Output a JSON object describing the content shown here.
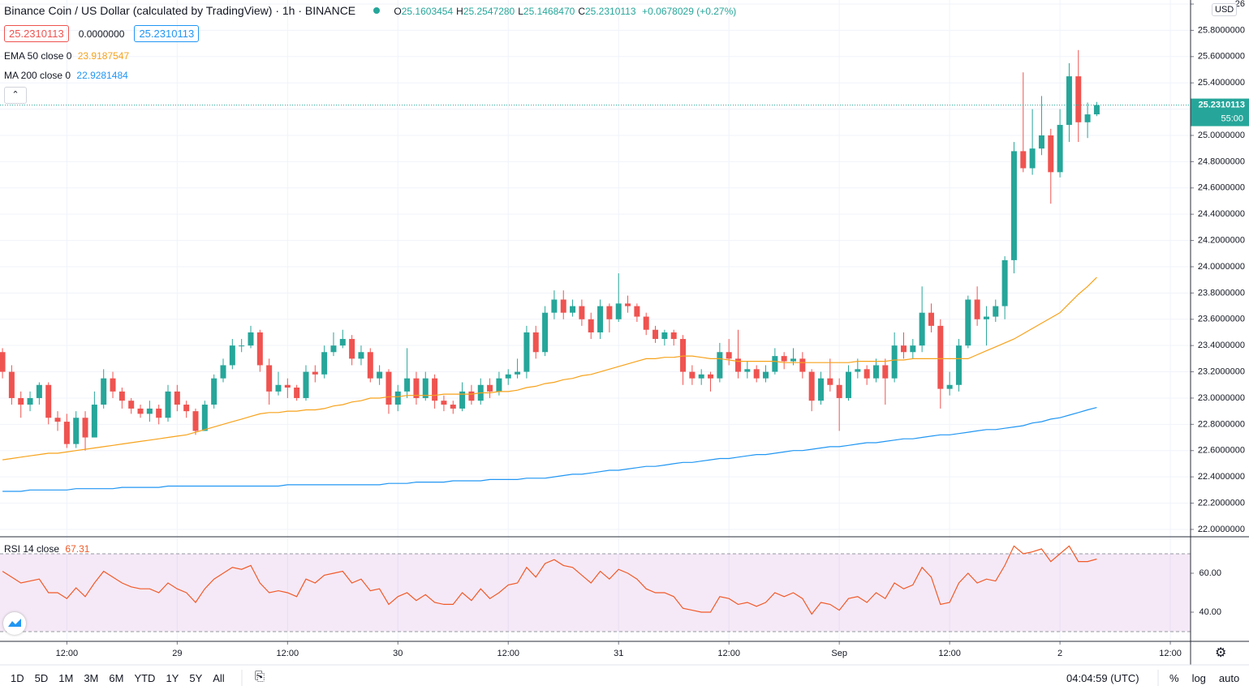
{
  "header": {
    "title": "Binance Coin / US Dollar (calculated by TradingView) · 1h · BINANCE",
    "ohlc": [
      {
        "label": "O",
        "value": "25.1603454"
      },
      {
        "label": "H",
        "value": "25.2547280"
      },
      {
        "label": "L",
        "value": "25.1468470"
      },
      {
        "label": "C",
        "value": "25.2310113"
      }
    ],
    "change": "+0.0678029 (+0.27%)",
    "price_boxes": [
      "25.2310113",
      "0.0000000",
      "25.2310113"
    ],
    "currency": "USD",
    "countdown": "55:00"
  },
  "chart_data": [
    {
      "type": "candlestick",
      "up_color": "#26a69a",
      "down_color": "#ef5350",
      "open": [
        23.35,
        23.2,
        23.0,
        22.95,
        23.0,
        23.1,
        22.85,
        22.82,
        22.65,
        22.85,
        22.7,
        22.95,
        23.15,
        23.05,
        22.98,
        22.92,
        22.88,
        22.92,
        22.85,
        23.05,
        22.95,
        22.9,
        22.75,
        22.95,
        23.15,
        23.25,
        23.4,
        23.4,
        23.5,
        23.25,
        23.05,
        23.1,
        23.08,
        23.0,
        23.2,
        23.18,
        23.35,
        23.4,
        23.45,
        23.3,
        23.35,
        23.15,
        23.2,
        22.95,
        23.05,
        23.15,
        23.0,
        23.15,
        22.98,
        22.95,
        22.92,
        23.05,
        22.98,
        23.1,
        23.05,
        23.15,
        23.18,
        23.2,
        23.5,
        23.35,
        23.65,
        23.75,
        23.65,
        23.7,
        23.6,
        23.5,
        23.7,
        23.6,
        23.72,
        23.7,
        23.62,
        23.52,
        23.45,
        23.5,
        23.45,
        23.2,
        23.15,
        23.18,
        23.15,
        23.35,
        23.3,
        23.2,
        23.22,
        23.15,
        23.2,
        23.32,
        23.28,
        23.3,
        23.2,
        22.98,
        23.15,
        23.1,
        23.0,
        23.2,
        23.22,
        23.15,
        23.25,
        23.15,
        23.4,
        23.35,
        23.4,
        23.65,
        23.55,
        23.07,
        23.1,
        23.4,
        23.75,
        23.6,
        23.62,
        23.7,
        24.05,
        24.88,
        24.75,
        24.9,
        25.0,
        24.72,
        25.08,
        25.45,
        25.1,
        25.1603454
      ],
      "high": [
        23.38,
        23.25,
        23.05,
        23.05,
        23.12,
        23.12,
        22.9,
        22.88,
        22.9,
        22.9,
        23.05,
        23.22,
        23.2,
        23.08,
        23.0,
        22.95,
        22.98,
        22.95,
        23.1,
        23.1,
        22.98,
        22.92,
        22.98,
        23.18,
        23.3,
        23.45,
        23.45,
        23.55,
        23.52,
        23.3,
        23.2,
        23.15,
        23.1,
        23.25,
        23.25,
        23.4,
        23.5,
        23.52,
        23.48,
        23.4,
        23.38,
        23.25,
        23.22,
        23.1,
        23.38,
        23.2,
        23.2,
        23.18,
        23.02,
        22.98,
        23.12,
        23.1,
        23.15,
        23.15,
        23.2,
        23.22,
        23.3,
        23.55,
        23.55,
        23.7,
        23.82,
        23.82,
        23.75,
        23.75,
        23.65,
        23.75,
        23.72,
        23.95,
        23.78,
        23.72,
        23.65,
        23.55,
        23.52,
        23.52,
        23.48,
        23.25,
        23.22,
        23.2,
        23.42,
        23.45,
        23.52,
        23.28,
        23.25,
        23.25,
        23.38,
        23.35,
        23.38,
        23.35,
        23.22,
        23.2,
        23.3,
        23.15,
        23.25,
        23.3,
        23.25,
        23.3,
        23.3,
        23.5,
        23.5,
        23.45,
        23.85,
        23.72,
        23.6,
        23.2,
        23.45,
        23.78,
        23.85,
        23.7,
        23.75,
        24.08,
        24.95,
        25.48,
        25.2,
        25.3,
        25.05,
        25.2,
        25.55,
        25.65,
        25.25,
        25.254728
      ],
      "low": [
        23.15,
        22.95,
        22.85,
        22.9,
        22.95,
        22.8,
        22.75,
        22.62,
        22.62,
        22.6,
        22.72,
        22.92,
        23.0,
        22.92,
        22.88,
        22.85,
        22.82,
        22.8,
        22.82,
        22.9,
        22.85,
        22.72,
        22.75,
        22.92,
        23.12,
        23.22,
        23.35,
        23.38,
        23.2,
        22.95,
        23.02,
        23.0,
        22.98,
        22.98,
        23.12,
        23.15,
        23.32,
        23.38,
        23.25,
        23.25,
        23.12,
        23.1,
        22.88,
        22.9,
        23.0,
        22.95,
        22.98,
        22.92,
        22.9,
        22.88,
        22.9,
        22.95,
        22.95,
        23.0,
        23.02,
        23.1,
        23.15,
        23.15,
        23.3,
        23.32,
        23.6,
        23.6,
        23.62,
        23.55,
        23.45,
        23.45,
        23.5,
        23.58,
        23.65,
        23.58,
        23.48,
        23.42,
        23.4,
        23.4,
        23.1,
        23.1,
        23.1,
        23.05,
        23.12,
        23.25,
        23.15,
        23.15,
        23.12,
        23.12,
        23.18,
        23.22,
        23.25,
        23.15,
        22.9,
        22.95,
        23.05,
        22.75,
        22.98,
        23.15,
        23.1,
        23.12,
        22.95,
        23.12,
        23.3,
        23.3,
        23.35,
        23.5,
        22.92,
        23.02,
        23.05,
        23.38,
        23.55,
        23.4,
        23.58,
        23.6,
        23.95,
        24.72,
        24.7,
        24.85,
        24.48,
        24.68,
        24.95,
        24.95,
        24.98,
        25.146847
      ],
      "close": [
        23.2,
        23.0,
        22.95,
        23.0,
        23.1,
        22.85,
        22.82,
        22.65,
        22.85,
        22.7,
        22.95,
        23.15,
        23.05,
        22.98,
        22.92,
        22.88,
        22.92,
        22.85,
        23.05,
        22.95,
        22.9,
        22.75,
        22.95,
        23.15,
        23.25,
        23.4,
        23.4,
        23.5,
        23.25,
        23.05,
        23.1,
        23.08,
        23.0,
        23.2,
        23.18,
        23.35,
        23.4,
        23.45,
        23.3,
        23.35,
        23.15,
        23.2,
        22.95,
        23.05,
        23.15,
        23.0,
        23.15,
        22.98,
        22.95,
        22.92,
        23.05,
        22.98,
        23.1,
        23.05,
        23.15,
        23.18,
        23.2,
        23.5,
        23.35,
        23.65,
        23.75,
        23.65,
        23.7,
        23.6,
        23.5,
        23.7,
        23.6,
        23.72,
        23.7,
        23.62,
        23.52,
        23.45,
        23.5,
        23.45,
        23.2,
        23.15,
        23.18,
        23.15,
        23.35,
        23.3,
        23.2,
        23.22,
        23.15,
        23.2,
        23.32,
        23.28,
        23.3,
        23.2,
        22.98,
        23.15,
        23.1,
        23.0,
        23.2,
        23.22,
        23.15,
        23.25,
        23.15,
        23.4,
        23.35,
        23.4,
        23.65,
        23.55,
        23.07,
        23.1,
        23.4,
        23.75,
        23.6,
        23.62,
        23.7,
        24.05,
        24.88,
        24.75,
        24.9,
        25.0,
        24.72,
        25.08,
        25.45,
        25.1,
        25.16,
        25.2310113
      ],
      "series": [
        {
          "name": "EMA 50 close 0",
          "color": "#f7a21b",
          "values": [
            22.53,
            22.54,
            22.55,
            22.56,
            22.57,
            22.58,
            22.58,
            22.59,
            22.6,
            22.61,
            22.62,
            22.63,
            22.64,
            22.65,
            22.66,
            22.67,
            22.68,
            22.69,
            22.7,
            22.71,
            22.72,
            22.74,
            22.76,
            22.78,
            22.8,
            22.82,
            22.84,
            22.86,
            22.88,
            22.89,
            22.89,
            22.9,
            22.9,
            22.91,
            22.91,
            22.92,
            22.94,
            22.95,
            22.97,
            22.98,
            23.0,
            23.0,
            23.01,
            23.01,
            23.02,
            23.02,
            23.02,
            23.02,
            23.03,
            23.03,
            23.03,
            23.03,
            23.04,
            23.04,
            23.05,
            23.05,
            23.06,
            23.08,
            23.09,
            23.11,
            23.12,
            23.14,
            23.15,
            23.17,
            23.18,
            23.2,
            23.22,
            23.24,
            23.26,
            23.28,
            23.3,
            23.3,
            23.31,
            23.31,
            23.32,
            23.32,
            23.31,
            23.3,
            23.3,
            23.29,
            23.28,
            23.28,
            23.28,
            23.28,
            23.28,
            23.27,
            23.27,
            23.27,
            23.27,
            23.27,
            23.27,
            23.27,
            23.27,
            23.28,
            23.28,
            23.28,
            23.28,
            23.29,
            23.29,
            23.3,
            23.3,
            23.3,
            23.3,
            23.3,
            23.3,
            23.3,
            23.33,
            23.36,
            23.39,
            23.42,
            23.45,
            23.49,
            23.53,
            23.57,
            23.61,
            23.65,
            23.72,
            23.79,
            23.85,
            23.9187547
          ]
        },
        {
          "name": "MA 200 close 0",
          "color": "#2196f3",
          "values": [
            22.29,
            22.29,
            22.29,
            22.3,
            22.3,
            22.3,
            22.3,
            22.3,
            22.31,
            22.31,
            22.31,
            22.31,
            22.31,
            22.32,
            22.32,
            22.32,
            22.32,
            22.32,
            22.33,
            22.33,
            22.33,
            22.33,
            22.33,
            22.33,
            22.33,
            22.33,
            22.33,
            22.33,
            22.33,
            22.33,
            22.33,
            22.34,
            22.34,
            22.34,
            22.34,
            22.34,
            22.34,
            22.34,
            22.34,
            22.34,
            22.34,
            22.34,
            22.35,
            22.35,
            22.35,
            22.36,
            22.36,
            22.36,
            22.36,
            22.37,
            22.37,
            22.37,
            22.37,
            22.38,
            22.38,
            22.38,
            22.38,
            22.39,
            22.39,
            22.39,
            22.4,
            22.41,
            22.42,
            22.42,
            22.43,
            22.44,
            22.45,
            22.45,
            22.46,
            22.47,
            22.48,
            22.48,
            22.49,
            22.5,
            22.51,
            22.51,
            22.52,
            22.53,
            22.54,
            22.54,
            22.55,
            22.56,
            22.57,
            22.57,
            22.58,
            22.59,
            22.6,
            22.6,
            22.61,
            22.62,
            22.63,
            22.63,
            22.64,
            22.65,
            22.66,
            22.66,
            22.67,
            22.68,
            22.69,
            22.69,
            22.7,
            22.71,
            22.72,
            22.72,
            22.73,
            22.74,
            22.75,
            22.76,
            22.76,
            22.77,
            22.78,
            22.79,
            22.81,
            22.82,
            22.84,
            22.85,
            22.87,
            22.89,
            22.91,
            22.9281484
          ]
        }
      ],
      "xlim": [
        -0.27,
        129.2
      ],
      "xticks": [
        {
          "value": 7,
          "label": "12:00"
        },
        {
          "value": 19,
          "label": "29"
        },
        {
          "value": 31,
          "label": "12:00"
        },
        {
          "value": 43,
          "label": "30"
        },
        {
          "value": 55,
          "label": "12:00"
        },
        {
          "value": 67,
          "label": "31"
        },
        {
          "value": 79,
          "label": "12:00"
        },
        {
          "value": 91,
          "label": "Sep"
        },
        {
          "value": 103,
          "label": "12:00"
        },
        {
          "value": 115,
          "label": "2"
        },
        {
          "value": 127,
          "label": "12:00"
        }
      ],
      "ylim": [
        21.944,
        26.031
      ],
      "yticks": [
        {
          "value": 22.0,
          "label": "22.0000000"
        },
        {
          "value": 22.2,
          "label": "22.2000000"
        },
        {
          "value": 22.4,
          "label": "22.4000000"
        },
        {
          "value": 22.6,
          "label": "22.6000000"
        },
        {
          "value": 22.8,
          "label": "22.8000000"
        },
        {
          "value": 23.0,
          "label": "23.0000000"
        },
        {
          "value": 23.2,
          "label": "23.2000000"
        },
        {
          "value": 23.4,
          "label": "23.4000000"
        },
        {
          "value": 23.6,
          "label": "23.6000000"
        },
        {
          "value": 23.8,
          "label": "23.8000000"
        },
        {
          "value": 24.0,
          "label": "24.0000000"
        },
        {
          "value": 24.2,
          "label": "24.2000000"
        },
        {
          "value": 24.4,
          "label": "24.4000000"
        },
        {
          "value": 24.6,
          "label": "24.6000000"
        },
        {
          "value": 24.8,
          "label": "24.8000000"
        },
        {
          "value": 25.0,
          "label": "25.0000000"
        },
        {
          "value": 25.2,
          "label": "25.2000000"
        },
        {
          "value": 25.4,
          "label": "25.4000000"
        },
        {
          "value": 25.6,
          "label": "25.6000000"
        },
        {
          "value": 25.8,
          "label": "25.8000000"
        },
        {
          "value": 26.0,
          "label": "26"
        }
      ],
      "grid": true
    },
    {
      "type": "line",
      "title": "RSI 14 close",
      "color": "#f05a28",
      "band_color": "#9c27b0",
      "band_limits": [
        30,
        70
      ],
      "values": [
        61,
        58,
        55,
        56,
        57,
        50,
        50,
        47,
        52.5,
        48,
        55,
        61,
        58,
        55,
        53,
        52,
        52,
        50,
        55,
        52,
        50,
        45,
        52,
        57,
        60,
        63,
        62,
        64,
        55,
        50,
        51,
        50,
        48,
        57,
        55,
        59,
        60,
        61,
        55,
        57,
        51,
        52,
        44,
        48,
        50,
        46,
        49,
        45,
        44,
        44,
        50,
        46,
        52,
        47,
        50,
        54,
        55,
        63,
        58,
        65,
        67,
        64,
        63,
        59,
        55,
        61,
        57,
        62,
        60,
        57,
        52,
        50,
        50,
        48,
        42,
        41,
        40,
        40,
        48,
        47,
        44,
        45,
        43,
        45,
        50,
        48,
        50,
        47,
        39,
        45,
        44,
        41,
        47,
        48,
        45,
        50,
        47,
        55,
        52,
        54,
        63,
        58,
        44,
        45,
        55,
        60,
        55,
        57,
        56,
        64,
        74,
        70,
        71,
        72.5,
        66,
        70,
        74,
        66,
        66,
        67.31
      ],
      "ylim": [
        25,
        78.75
      ],
      "yticks": [
        {
          "value": 40,
          "label": "40.00"
        },
        {
          "value": 60,
          "label": "60.00"
        }
      ]
    }
  ],
  "footer": {
    "ranges": [
      "1D",
      "5D",
      "1M",
      "3M",
      "6M",
      "YTD",
      "1Y",
      "5Y",
      "All"
    ],
    "clock": "04:04:59 (UTC)",
    "options": [
      "%",
      "log",
      "auto"
    ]
  }
}
